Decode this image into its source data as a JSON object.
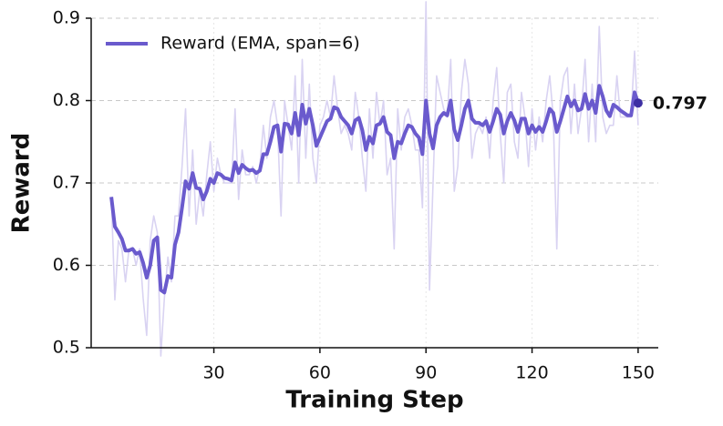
{
  "chart_data": {
    "type": "line",
    "x_label": "Training Step",
    "y_label": "Reward",
    "x": [
      1,
      2,
      3,
      4,
      5,
      6,
      7,
      8,
      9,
      10,
      11,
      12,
      13,
      14,
      15,
      16,
      17,
      18,
      19,
      20,
      21,
      22,
      23,
      24,
      25,
      26,
      27,
      28,
      29,
      30,
      31,
      32,
      33,
      34,
      35,
      36,
      37,
      38,
      39,
      40,
      41,
      42,
      43,
      44,
      45,
      46,
      47,
      48,
      49,
      50,
      51,
      52,
      53,
      54,
      55,
      56,
      57,
      58,
      59,
      60,
      61,
      62,
      63,
      64,
      65,
      66,
      67,
      68,
      69,
      70,
      71,
      72,
      73,
      74,
      75,
      76,
      77,
      78,
      79,
      80,
      81,
      82,
      83,
      84,
      85,
      86,
      87,
      88,
      89,
      90,
      91,
      92,
      93,
      94,
      95,
      96,
      97,
      98,
      99,
      100,
      101,
      102,
      103,
      104,
      105,
      106,
      107,
      108,
      109,
      110,
      111,
      112,
      113,
      114,
      115,
      116,
      117,
      118,
      119,
      120,
      121,
      122,
      123,
      124,
      125,
      126,
      127,
      128,
      129,
      130,
      131,
      132,
      133,
      134,
      135,
      136,
      137,
      138,
      139,
      140,
      141,
      142,
      143,
      144,
      145,
      146,
      147,
      148,
      149,
      150
    ],
    "series": [
      {
        "color": "#d9d3f2",
        "width": 1.6,
        "values": [
          0.683,
          0.558,
          0.63,
          0.62,
          0.58,
          0.62,
          0.62,
          0.6,
          0.62,
          0.56,
          0.515,
          0.63,
          0.66,
          0.64,
          0.49,
          0.56,
          0.61,
          0.58,
          0.66,
          0.66,
          0.72,
          0.79,
          0.66,
          0.74,
          0.65,
          0.69,
          0.66,
          0.71,
          0.75,
          0.69,
          0.73,
          0.71,
          0.7,
          0.7,
          0.7,
          0.79,
          0.68,
          0.74,
          0.71,
          0.71,
          0.72,
          0.7,
          0.72,
          0.77,
          0.73,
          0.78,
          0.8,
          0.77,
          0.66,
          0.8,
          0.77,
          0.74,
          0.83,
          0.7,
          0.85,
          0.73,
          0.82,
          0.73,
          0.7,
          0.77,
          0.78,
          0.8,
          0.78,
          0.83,
          0.79,
          0.76,
          0.77,
          0.76,
          0.74,
          0.81,
          0.78,
          0.73,
          0.69,
          0.79,
          0.73,
          0.81,
          0.77,
          0.8,
          0.71,
          0.73,
          0.62,
          0.79,
          0.74,
          0.78,
          0.79,
          0.77,
          0.74,
          0.74,
          0.67,
          0.92,
          0.57,
          0.7,
          0.83,
          0.81,
          0.79,
          0.78,
          0.85,
          0.69,
          0.72,
          0.81,
          0.85,
          0.82,
          0.73,
          0.76,
          0.77,
          0.76,
          0.78,
          0.73,
          0.8,
          0.84,
          0.76,
          0.7,
          0.81,
          0.82,
          0.75,
          0.73,
          0.81,
          0.78,
          0.72,
          0.79,
          0.74,
          0.78,
          0.75,
          0.8,
          0.83,
          0.78,
          0.62,
          0.8,
          0.83,
          0.84,
          0.76,
          0.82,
          0.76,
          0.79,
          0.85,
          0.75,
          0.82,
          0.75,
          0.89,
          0.78,
          0.76,
          0.77,
          0.77,
          0.83,
          0.78,
          0.78,
          0.78,
          0.78,
          0.86,
          0.77
        ]
      },
      {
        "name": "Reward (EMA, span=6)",
        "color": "#6a5acd",
        "width": 4,
        "values": [
          0.683,
          0.647,
          0.64,
          0.632,
          0.618,
          0.618,
          0.62,
          0.614,
          0.616,
          0.603,
          0.585,
          0.6,
          0.63,
          0.634,
          0.57,
          0.567,
          0.587,
          0.585,
          0.625,
          0.64,
          0.67,
          0.702,
          0.693,
          0.712,
          0.694,
          0.693,
          0.68,
          0.69,
          0.705,
          0.7,
          0.712,
          0.71,
          0.706,
          0.705,
          0.703,
          0.725,
          0.712,
          0.722,
          0.718,
          0.715,
          0.716,
          0.712,
          0.715,
          0.735,
          0.735,
          0.75,
          0.768,
          0.77,
          0.738,
          0.772,
          0.771,
          0.76,
          0.785,
          0.758,
          0.795,
          0.772,
          0.79,
          0.77,
          0.745,
          0.755,
          0.765,
          0.775,
          0.778,
          0.792,
          0.79,
          0.78,
          0.775,
          0.77,
          0.76,
          0.776,
          0.779,
          0.764,
          0.74,
          0.756,
          0.748,
          0.77,
          0.772,
          0.78,
          0.762,
          0.758,
          0.73,
          0.75,
          0.748,
          0.76,
          0.77,
          0.768,
          0.76,
          0.755,
          0.735,
          0.8,
          0.76,
          0.742,
          0.77,
          0.78,
          0.785,
          0.782,
          0.8,
          0.765,
          0.752,
          0.77,
          0.79,
          0.8,
          0.778,
          0.773,
          0.773,
          0.77,
          0.775,
          0.762,
          0.775,
          0.79,
          0.783,
          0.76,
          0.775,
          0.785,
          0.776,
          0.762,
          0.778,
          0.778,
          0.76,
          0.77,
          0.762,
          0.768,
          0.762,
          0.775,
          0.79,
          0.785,
          0.762,
          0.775,
          0.79,
          0.805,
          0.793,
          0.8,
          0.788,
          0.79,
          0.808,
          0.79,
          0.8,
          0.785,
          0.818,
          0.805,
          0.788,
          0.781,
          0.795,
          0.792,
          0.788,
          0.785,
          0.782,
          0.782,
          0.81,
          0.797
        ]
      }
    ],
    "annotation": {
      "text": "0.797",
      "x": 150,
      "y": 0.797,
      "color": "#3d2fa3"
    },
    "xlim": [
      -4.7,
      155.7
    ],
    "xticks": [
      30,
      60,
      90,
      120,
      150
    ],
    "ylim": [
      0.5,
      0.9
    ],
    "yticks": [
      0.5,
      0.6,
      0.7,
      0.8,
      0.9
    ],
    "grid": true,
    "legend": "upper left"
  }
}
